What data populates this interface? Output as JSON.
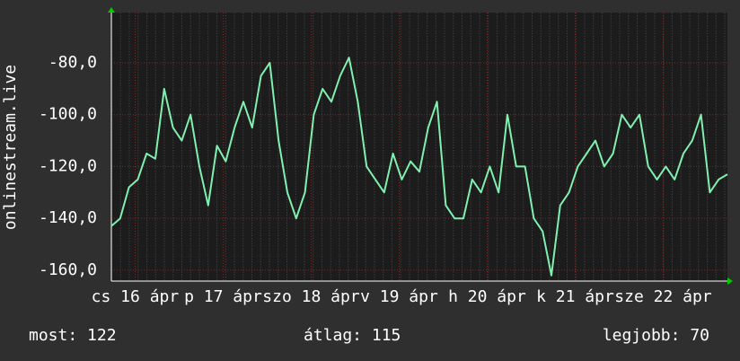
{
  "chart_data": {
    "type": "line",
    "ylabel": "onlinestream.live",
    "x": [
      0,
      0.1,
      0.2,
      0.3,
      0.4,
      0.5,
      0.6,
      0.7,
      0.8,
      0.9,
      1,
      1.1,
      1.2,
      1.3,
      1.4,
      1.5,
      1.6,
      1.7,
      1.8,
      1.9,
      2,
      2.1,
      2.2,
      2.3,
      2.4,
      2.5,
      2.6,
      2.7,
      2.8,
      2.9,
      3,
      3.1,
      3.2,
      3.3,
      3.4,
      3.5,
      3.6,
      3.7,
      3.8,
      3.9,
      4,
      4.1,
      4.2,
      4.3,
      4.4,
      4.5,
      4.6,
      4.7,
      4.8,
      4.9,
      5,
      5.1,
      5.2,
      5.3,
      5.4,
      5.5,
      5.6,
      5.7,
      5.8,
      5.9,
      6,
      6.1,
      6.2,
      6.3,
      6.4,
      6.5,
      6.6,
      6.7,
      6.8,
      6.9,
      7
    ],
    "series": [
      {
        "color": "#80f0b0",
        "values": [
          -143,
          -140,
          -128,
          -125,
          -115,
          -117,
          -90,
          -105,
          -110,
          -100,
          -120,
          -135,
          -112,
          -118,
          -105,
          -95,
          -105,
          -85,
          -80,
          -110,
          -130,
          -140,
          -130,
          -100,
          -90,
          -95,
          -85,
          -78,
          -95,
          -120,
          -125,
          -130,
          -115,
          -125,
          -118,
          -122,
          -105,
          -95,
          -135,
          -140,
          -140,
          -125,
          -130,
          -120,
          -130,
          -100,
          -120,
          -120,
          -140,
          -145,
          -162,
          -135,
          -130,
          -120,
          -115,
          -110,
          -120,
          -115,
          -100,
          -105,
          -100,
          -120,
          -125,
          -120,
          -125,
          -115,
          -110,
          -100,
          -130,
          -125,
          -123
        ]
      }
    ],
    "xlim": [
      0,
      7
    ],
    "xticks": [
      {
        "value": 0.27,
        "label": "cs 16 ápr"
      },
      {
        "value": 1.27,
        "label": "p 17 ápr"
      },
      {
        "value": 2.27,
        "label": "szo 18 ápr"
      },
      {
        "value": 3.27,
        "label": "v 19 ápr"
      },
      {
        "value": 4.27,
        "label": "h 20 ápr"
      },
      {
        "value": 5.27,
        "label": "k 21 ápr"
      },
      {
        "value": 6.27,
        "label": "sze 22 ápr"
      }
    ],
    "ylim": [
      -164.2,
      -60.6
    ],
    "yticks": [
      {
        "value": -80,
        "label": "-80,0"
      },
      {
        "value": -100,
        "label": "-100,0"
      },
      {
        "value": -120,
        "label": "-120,0"
      },
      {
        "value": -140,
        "label": "-140,0"
      },
      {
        "value": -160,
        "label": "-160,0"
      }
    ],
    "grid": true,
    "footer": [
      "most: 122",
      "átlag: 115",
      "legjobb: 70"
    ]
  }
}
